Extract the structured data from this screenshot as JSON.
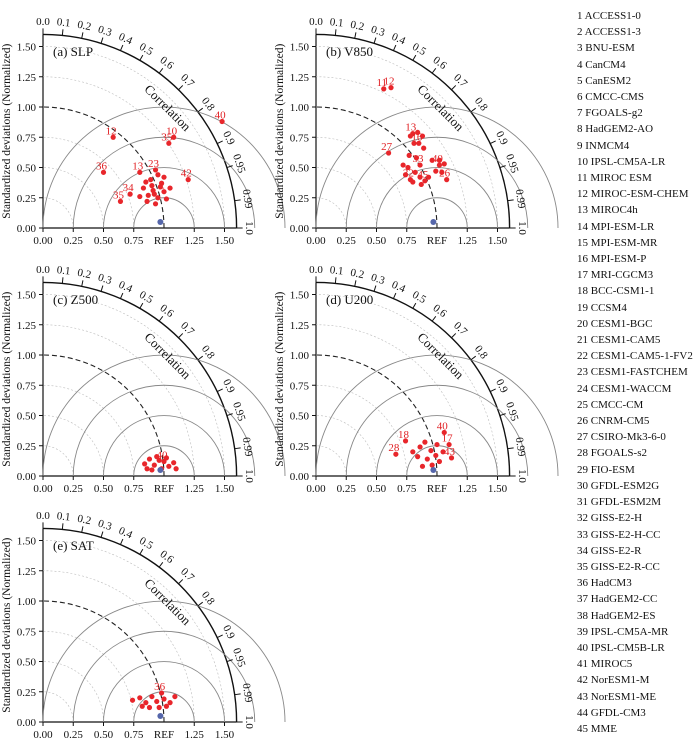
{
  "colors": {
    "marker": "#e8262b",
    "marker_label": "#e02024",
    "mme": "#5566aa",
    "axis": "#111111",
    "arc": "#888888",
    "ref_arc": "#222222"
  },
  "chart_data": {
    "type": "scatter",
    "chart_kind": "taylor-diagram",
    "xlabel": "",
    "ylabel": "Standardized deviations (Normalized)",
    "angle_label": "Correlation",
    "ref_label": "REF",
    "x_ticks": [
      "0.00",
      "0.25",
      "0.50",
      "0.75",
      "1.25",
      "1.50"
    ],
    "y_ticks": [
      "0.00",
      "0.25",
      "0.50",
      "0.75",
      "1.00",
      "1.25",
      "1.50"
    ],
    "correlation_ticks": [
      "0.0",
      "0.1",
      "0.2",
      "0.3",
      "0.4",
      "0.5",
      "0.6",
      "0.7",
      "0.8",
      "0.9",
      "0.95",
      "0.99",
      "1.0"
    ],
    "sd_range": [
      0,
      1.6
    ],
    "sd_arcs": [
      0.25,
      0.5,
      0.75,
      1.25,
      1.5
    ],
    "panels": [
      {
        "title": "(a) SLP",
        "points": [
          {
            "label": "12",
            "x": 0.58,
            "y": 0.75
          },
          {
            "label": "10",
            "x": 1.08,
            "y": 0.75
          },
          {
            "label": "35",
            "x": 1.04,
            "y": 0.7
          },
          {
            "label": "40",
            "x": 1.48,
            "y": 0.88
          },
          {
            "label": "36",
            "x": 0.5,
            "y": 0.46
          },
          {
            "label": "13",
            "x": 0.8,
            "y": 0.46
          },
          {
            "label": "23",
            "x": 0.93,
            "y": 0.48
          },
          {
            "label": "42",
            "x": 1.2,
            "y": 0.4
          },
          {
            "label": "34",
            "x": 0.72,
            "y": 0.28
          },
          {
            "label": "35",
            "x": 0.64,
            "y": 0.22
          },
          {
            "label": "2",
            "x": 1.0,
            "y": 0.3
          },
          {
            "label": "",
            "x": 0.87,
            "y": 0.27
          },
          {
            "label": "",
            "x": 0.91,
            "y": 0.31
          },
          {
            "label": "",
            "x": 0.95,
            "y": 0.25
          },
          {
            "label": "",
            "x": 0.83,
            "y": 0.33
          },
          {
            "label": "",
            "x": 0.98,
            "y": 0.37
          },
          {
            "label": "",
            "x": 0.89,
            "y": 0.4
          },
          {
            "label": "",
            "x": 0.95,
            "y": 0.44
          },
          {
            "label": "",
            "x": 0.86,
            "y": 0.22
          },
          {
            "label": "",
            "x": 1.02,
            "y": 0.24
          },
          {
            "label": "",
            "x": 0.8,
            "y": 0.26
          },
          {
            "label": "",
            "x": 0.93,
            "y": 0.2
          },
          {
            "label": "",
            "x": 0.97,
            "y": 0.34
          },
          {
            "label": "",
            "x": 0.85,
            "y": 0.38
          },
          {
            "label": "",
            "x": 1.05,
            "y": 0.33
          },
          {
            "label": "",
            "x": 0.9,
            "y": 0.35
          },
          {
            "label": "",
            "x": 1.0,
            "y": 0.42
          },
          {
            "label": "",
            "x": 0.92,
            "y": 0.28
          }
        ]
      },
      {
        "title": "(b) V850",
        "points": [
          {
            "label": "11",
            "x": 0.56,
            "y": 1.15
          },
          {
            "label": "12",
            "x": 0.62,
            "y": 1.16
          },
          {
            "label": "27",
            "x": 0.6,
            "y": 0.62
          },
          {
            "label": "26",
            "x": 1.08,
            "y": 0.4
          },
          {
            "label": "32",
            "x": 0.78,
            "y": 0.4
          },
          {
            "label": "45",
            "x": 0.9,
            "y": 0.39
          },
          {
            "label": "13",
            "x": 0.8,
            "y": 0.78
          },
          {
            "label": "16",
            "x": 0.85,
            "y": 0.7
          },
          {
            "label": "33",
            "x": 0.86,
            "y": 0.52
          },
          {
            "label": "40",
            "x": 1.02,
            "y": 0.52
          },
          {
            "label": "",
            "x": 0.78,
            "y": 0.76
          },
          {
            "label": "",
            "x": 0.84,
            "y": 0.79
          },
          {
            "label": "",
            "x": 0.88,
            "y": 0.76
          },
          {
            "label": "",
            "x": 0.81,
            "y": 0.7
          },
          {
            "label": "",
            "x": 0.89,
            "y": 0.66
          },
          {
            "label": "",
            "x": 0.77,
            "y": 0.6
          },
          {
            "label": "",
            "x": 0.83,
            "y": 0.58
          },
          {
            "label": "",
            "x": 0.76,
            "y": 0.5
          },
          {
            "label": "",
            "x": 0.82,
            "y": 0.46
          },
          {
            "label": "",
            "x": 0.74,
            "y": 0.44
          },
          {
            "label": "",
            "x": 0.86,
            "y": 0.42
          },
          {
            "label": "",
            "x": 0.93,
            "y": 0.42
          },
          {
            "label": "",
            "x": 0.99,
            "y": 0.47
          },
          {
            "label": "",
            "x": 1.02,
            "y": 0.56
          },
          {
            "label": "",
            "x": 1.06,
            "y": 0.53
          },
          {
            "label": "",
            "x": 1.04,
            "y": 0.46
          },
          {
            "label": "",
            "x": 0.96,
            "y": 0.56
          },
          {
            "label": "",
            "x": 0.8,
            "y": 0.38
          },
          {
            "label": "",
            "x": 0.87,
            "y": 0.36
          },
          {
            "label": "",
            "x": 0.72,
            "y": 0.52
          }
        ]
      },
      {
        "title": "(c) Z500",
        "points": [
          {
            "label": "40",
            "x": 1.0,
            "y": 0.12
          },
          {
            "label": "",
            "x": 0.84,
            "y": 0.1
          },
          {
            "label": "",
            "x": 0.88,
            "y": 0.14
          },
          {
            "label": "",
            "x": 0.92,
            "y": 0.09
          },
          {
            "label": "",
            "x": 0.96,
            "y": 0.13
          },
          {
            "label": "",
            "x": 1.04,
            "y": 0.08
          },
          {
            "label": "",
            "x": 1.08,
            "y": 0.11
          },
          {
            "label": "",
            "x": 0.9,
            "y": 0.05
          },
          {
            "label": "",
            "x": 0.98,
            "y": 0.06
          },
          {
            "label": "",
            "x": 1.02,
            "y": 0.15
          },
          {
            "label": "",
            "x": 0.86,
            "y": 0.06
          },
          {
            "label": "",
            "x": 1.1,
            "y": 0.06
          },
          {
            "label": "",
            "x": 0.94,
            "y": 0.16
          }
        ]
      },
      {
        "title": "(d) U200",
        "points": [
          {
            "label": "18",
            "x": 0.74,
            "y": 0.29
          },
          {
            "label": "28",
            "x": 0.66,
            "y": 0.18
          },
          {
            "label": "40",
            "x": 1.06,
            "y": 0.36
          },
          {
            "label": "17",
            "x": 1.1,
            "y": 0.26
          },
          {
            "label": "43",
            "x": 1.12,
            "y": 0.15
          },
          {
            "label": "",
            "x": 0.86,
            "y": 0.24
          },
          {
            "label": "",
            "x": 0.9,
            "y": 0.28
          },
          {
            "label": "",
            "x": 0.95,
            "y": 0.21
          },
          {
            "label": "",
            "x": 1.0,
            "y": 0.26
          },
          {
            "label": "",
            "x": 0.84,
            "y": 0.16
          },
          {
            "label": "",
            "x": 0.92,
            "y": 0.14
          },
          {
            "label": "",
            "x": 0.99,
            "y": 0.17
          },
          {
            "label": "",
            "x": 1.05,
            "y": 0.2
          },
          {
            "label": "",
            "x": 0.88,
            "y": 0.08
          },
          {
            "label": "",
            "x": 0.96,
            "y": 0.09
          },
          {
            "label": "",
            "x": 1.02,
            "y": 0.12
          },
          {
            "label": "",
            "x": 0.8,
            "y": 0.2
          }
        ]
      },
      {
        "title": "(e) SAT",
        "points": [
          {
            "label": "36",
            "x": 0.98,
            "y": 0.24
          },
          {
            "label": "",
            "x": 0.74,
            "y": 0.18
          },
          {
            "label": "",
            "x": 0.8,
            "y": 0.2
          },
          {
            "label": "",
            "x": 0.85,
            "y": 0.16
          },
          {
            "label": "",
            "x": 0.9,
            "y": 0.21
          },
          {
            "label": "",
            "x": 0.94,
            "y": 0.17
          },
          {
            "label": "",
            "x": 1.0,
            "y": 0.19
          },
          {
            "label": "",
            "x": 1.05,
            "y": 0.16
          },
          {
            "label": "",
            "x": 1.09,
            "y": 0.21
          },
          {
            "label": "",
            "x": 0.88,
            "y": 0.12
          },
          {
            "label": "",
            "x": 0.96,
            "y": 0.12
          },
          {
            "label": "",
            "x": 1.02,
            "y": 0.13
          },
          {
            "label": "",
            "x": 0.82,
            "y": 0.13
          }
        ]
      }
    ]
  },
  "legend": [
    "1 ACCESS1-0",
    "2 ACCESS1-3",
    "3 BNU-ESM",
    "4 CanCM4",
    "5 CanESM2",
    "6 CMCC-CMS",
    "7 FGOALS-g2",
    "8 HadGEM2-AO",
    "9 INMCM4",
    "10 IPSL-CM5A-LR",
    "11 MIROC ESM",
    "12 MIROC-ESM-CHEM",
    "13 MIROC4h",
    "14 MPI-ESM-LR",
    "15 MPI-ESM-MR",
    "16 MPI-ESM-P",
    "17 MRI-CGCM3",
    "18 BCC-CSM1-1",
    "19 CCSM4",
    "20 CESM1-BGC",
    "21 CESM1-CAM5",
    "22 CESM1-CAM5-1-FV2",
    "23 CESM1-FASTCHEM",
    "24 CESM1-WACCM",
    "25 CMCC-CM",
    "26 CNRM-CM5",
    "27 CSIRO-Mk3-6-0",
    "28 FGOALS-s2",
    "29 FIO-ESM",
    "30 GFDL-ESM2G",
    "31 GFDL-ESM2M",
    "32 GISS-E2-H",
    "33 GISS-E2-H-CC",
    "34 GISS-E2-R",
    "35 GISS-E2-R-CC",
    "36 HadCM3",
    "37 HadGEM2-CC",
    "38 HadGEM2-ES",
    "39 IPSL-CM5A-MR",
    "40 IPSL-CM5B-LR",
    "41 MIROC5",
    "42 NorESM1-M",
    "43 NorESM1-ME",
    "44 GFDL-CM3",
    "45 MME"
  ]
}
